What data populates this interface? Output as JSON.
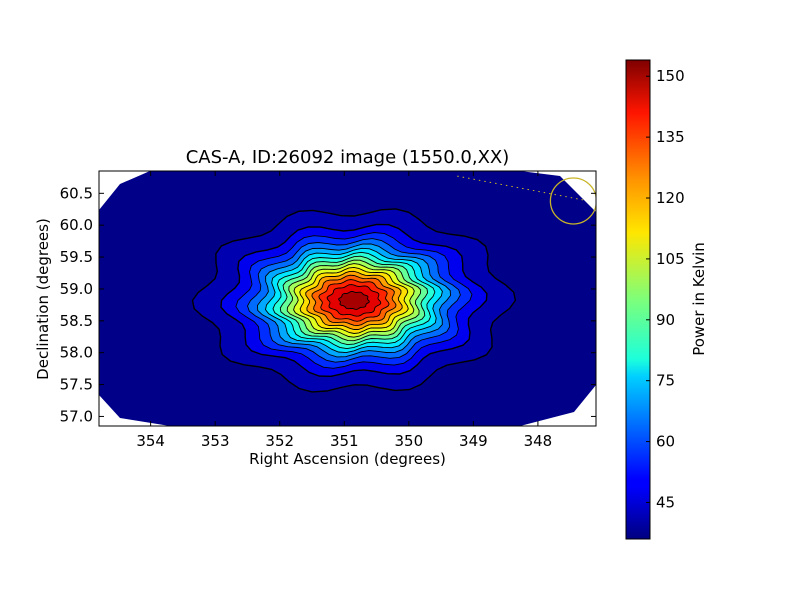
{
  "chart_data": {
    "type": "heatmap",
    "title": "CAS-A, ID:26092 image (1550.0,XX)",
    "xlabel": "Right Ascension (degrees)",
    "ylabel": "Declination (degrees)",
    "x_range": [
      354.8,
      347.1
    ],
    "y_range": [
      56.85,
      60.85
    ],
    "x_reversed": true,
    "x_ticks": [
      354,
      353,
      352,
      351,
      350,
      349,
      348
    ],
    "x_tick_labels": [
      "354",
      "353",
      "352",
      "351",
      "350",
      "349",
      "348"
    ],
    "y_ticks": [
      57.0,
      57.5,
      58.0,
      58.5,
      59.0,
      59.5,
      60.0,
      60.5
    ],
    "y_tick_labels": [
      "57.0",
      "57.5",
      "58.0",
      "58.5",
      "59.0",
      "59.5",
      "60.0",
      "60.5"
    ],
    "source_peak": {
      "ra": 350.85,
      "dec": 58.82,
      "value": 153
    },
    "background_value": 38,
    "beam_marker": {
      "ra": 347.45,
      "dec": 60.38,
      "color": "#c8b428"
    },
    "colorbar": {
      "label": "Power in Kelvin",
      "range": [
        36,
        154
      ],
      "ticks": [
        45,
        60,
        75,
        90,
        105,
        120,
        135,
        150
      ],
      "tick_labels": [
        "45",
        "60",
        "75",
        "90",
        "105",
        "120",
        "135",
        "150"
      ],
      "colormap": "jet"
    },
    "grid": false
  }
}
